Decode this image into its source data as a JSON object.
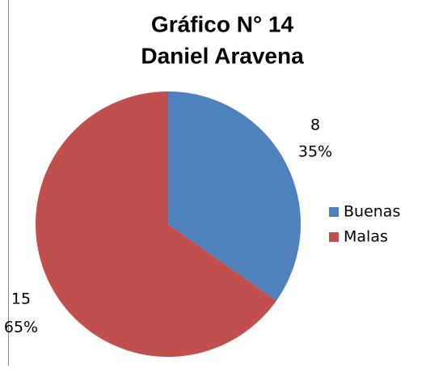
{
  "chart_data": {
    "type": "pie",
    "title": [
      "Gráfico N° 14",
      "Daniel Aravena"
    ],
    "categories": [
      "Buenas",
      "Malas"
    ],
    "values": [
      8,
      15
    ],
    "percent_labels": [
      "35%",
      "65%"
    ],
    "colors": [
      "#4f81bd",
      "#c0504d"
    ],
    "legend": "right"
  }
}
